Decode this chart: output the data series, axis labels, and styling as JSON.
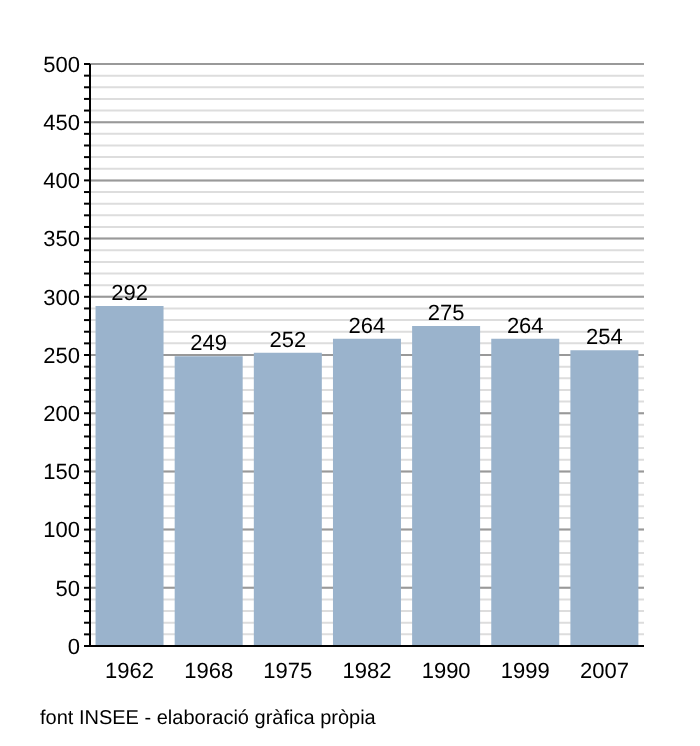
{
  "chart_data": {
    "type": "bar",
    "categories": [
      "1962",
      "1968",
      "1975",
      "1982",
      "1990",
      "1999",
      "2007"
    ],
    "values": [
      292,
      249,
      252,
      264,
      275,
      264,
      254
    ],
    "color": "#9ab3cc",
    "data_labels": true,
    "ylim": [
      0,
      500
    ],
    "yticks": [
      0,
      {
        "value": 10,
        "label": null
      },
      {
        "value": 20,
        "label": null
      },
      {
        "value": 30,
        "label": null
      },
      {
        "value": 40,
        "label": null
      },
      50,
      {
        "value": 60,
        "label": null
      },
      {
        "value": 70,
        "label": null
      },
      {
        "value": 80,
        "label": null
      },
      {
        "value": 90,
        "label": null
      },
      100,
      {
        "value": 110,
        "label": null
      },
      {
        "value": 120,
        "label": null
      },
      {
        "value": 130,
        "label": null
      },
      {
        "value": 140,
        "label": null
      },
      150,
      {
        "value": 160,
        "label": null
      },
      {
        "value": 170,
        "label": null
      },
      {
        "value": 180,
        "label": null
      },
      {
        "value": 190,
        "label": null
      },
      200,
      {
        "value": 210,
        "label": null
      },
      {
        "value": 220,
        "label": null
      },
      {
        "value": 230,
        "label": null
      },
      {
        "value": 240,
        "label": null
      },
      250,
      {
        "value": 260,
        "label": null
      },
      {
        "value": 270,
        "label": null
      },
      {
        "value": 280,
        "label": null
      },
      {
        "value": 290,
        "label": null
      },
      300,
      {
        "value": 310,
        "label": null
      },
      {
        "value": 320,
        "label": null
      },
      {
        "value": 330,
        "label": null
      },
      {
        "value": 340,
        "label": null
      },
      350,
      {
        "value": 360,
        "label": null
      },
      {
        "value": 370,
        "label": null
      },
      {
        "value": 380,
        "label": null
      },
      {
        "value": 390,
        "label": null
      },
      400,
      {
        "value": 410,
        "label": null
      },
      {
        "value": 420,
        "label": null
      },
      {
        "value": 430,
        "label": null
      },
      {
        "value": 440,
        "label": null
      },
      450,
      {
        "value": 460,
        "label": null
      },
      {
        "value": 470,
        "label": null
      },
      {
        "value": 480,
        "label": null
      },
      {
        "value": 490,
        "label": null
      },
      500
    ],
    "grid": "y",
    "annotations": [
      "font INSEE - elaboració gràfica pròpia"
    ]
  }
}
